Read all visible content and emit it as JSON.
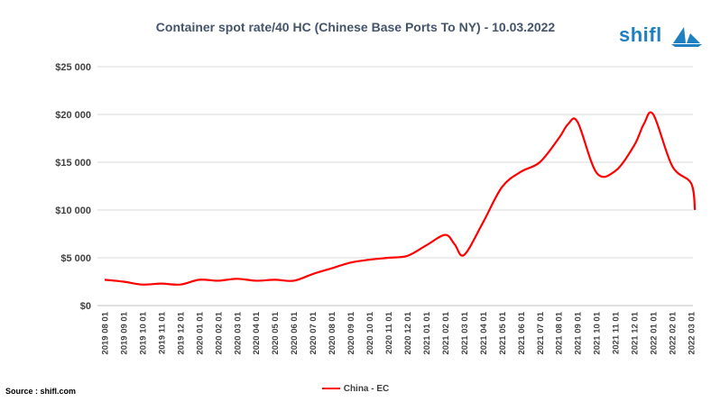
{
  "chart_data": {
    "type": "line",
    "title": "Container spot rate/40 HC (Chinese Base Ports To NY) - 10.03.2022",
    "xlabel": "",
    "ylabel": "",
    "ylim": [
      0,
      25000
    ],
    "yticks": [
      "$0",
      "$5 000",
      "$10 000",
      "$15 000",
      "$20 000",
      "$25 000"
    ],
    "grid": true,
    "legend_position": "bottom",
    "categories": [
      "2019 08 01",
      "2019 09 01",
      "2019 10 01",
      "2019 11 01",
      "2019 12 01",
      "2020 01 01",
      "2020 02 01",
      "2020 03 01",
      "2020 04 01",
      "2020 05 01",
      "2020 06 01",
      "2020 07 01",
      "2020 08 01",
      "2020 09 01",
      "2020 10 01",
      "2020 11 01",
      "2020 12 01",
      "2021 01 01",
      "2021 02 01",
      "2021 03 01",
      "2021 04 01",
      "2021 05 01",
      "2021 06 01",
      "2021 07 01",
      "2021 08 01",
      "2021 09 01",
      "2021 10 01",
      "2021 11 01",
      "2021 12 01",
      "2022 01 01",
      "2022 02 01",
      "2022 03 01"
    ],
    "series": [
      {
        "name": "China - EC",
        "color": "#ff0000",
        "x": [
          0,
          1,
          2,
          3,
          4,
          5,
          6,
          7,
          8,
          9,
          10,
          11,
          12,
          13,
          14,
          15,
          16,
          17,
          18,
          18.5,
          19,
          20,
          21,
          22,
          23,
          24,
          24.5,
          25,
          26,
          27,
          28,
          28.5,
          29,
          30,
          31,
          31.2
        ],
        "y": [
          2700,
          2500,
          2200,
          2300,
          2200,
          2700,
          2600,
          2800,
          2600,
          2700,
          2600,
          3300,
          3900,
          4500,
          4800,
          5000,
          5200,
          6300,
          7400,
          6400,
          5300,
          8700,
          12400,
          14000,
          15000,
          17500,
          19000,
          19200,
          13900,
          14100,
          16800,
          19000,
          20000,
          14600,
          12800,
          10000
        ]
      }
    ]
  },
  "logo": {
    "text": "shifl"
  },
  "source": "Source : shifl.com"
}
